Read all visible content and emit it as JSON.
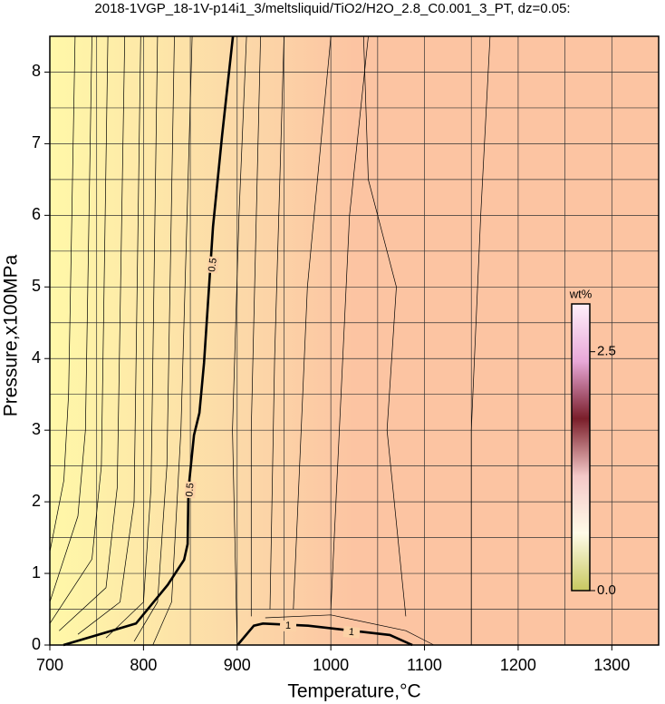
{
  "chart_data": {
    "type": "contour",
    "title": "2018-1VGP_18-1V-p14i1_3/meltsliquid/TiO2/H2O_2.8_C0.001_3_PT, dz=0.05:",
    "xlabel": "Temperature,°C",
    "ylabel": "Pressure,x100MPa",
    "xlim": [
      700,
      1350
    ],
    "ylim": [
      0,
      8.5
    ],
    "xticks": [
      700,
      800,
      900,
      1000,
      1100,
      1200,
      1300
    ],
    "yticks": [
      0,
      1,
      2,
      3,
      4,
      5,
      6,
      7,
      8
    ],
    "xminor": [
      750,
      850,
      950,
      1050,
      1150,
      1250,
      1350
    ],
    "yminor": [
      0.5,
      1.5,
      2.5,
      3.5,
      4.5,
      5.5,
      6.5,
      7.5,
      8.5
    ],
    "grid": true,
    "background_colors": [
      "#fff8a8",
      "#fcd8a8",
      "#fcc4a2"
    ],
    "line_color": "#000000",
    "contours": [
      {
        "level": 0.5,
        "x": [
          714.5,
          792,
          825.8,
          843.3,
          847.1,
          848,
          853.9,
          859.7,
          864.6,
          874.2,
          883.9,
          895.5
        ],
        "y": [
          0,
          0.3,
          0.84,
          1.19,
          1.41,
          2.17,
          2.93,
          3.24,
          3.94,
          5.84,
          7.11,
          8.5
        ]
      },
      {
        "level": 1,
        "x": [
          900.4,
          917.8,
          927.5,
          975.9,
          1063,
          1087
        ],
        "y": [
          0,
          0.27,
          0.3,
          0.27,
          0.14,
          0
        ]
      },
      {
        "x": [
          700,
          715,
          720,
          727
        ],
        "y": [
          1.3,
          2.3,
          3.5,
          8.5
        ]
      },
      {
        "x": [
          700,
          730,
          738,
          745
        ],
        "y": [
          0.6,
          1.8,
          3,
          8.5
        ]
      },
      {
        "x": [
          700,
          745,
          755,
          762
        ],
        "y": [
          0.3,
          1.2,
          2.5,
          8.5
        ]
      },
      {
        "x": [
          710,
          760,
          772,
          780
        ],
        "y": [
          0.2,
          0.8,
          2.2,
          8.5
        ]
      },
      {
        "x": [
          730,
          775,
          790,
          797
        ],
        "y": [
          0.15,
          0.6,
          2,
          8.5
        ]
      },
      {
        "x": [
          760,
          800,
          808,
          815
        ],
        "y": [
          0.1,
          0.6,
          2.2,
          8.5
        ]
      },
      {
        "x": [
          790,
          815,
          825,
          833
        ],
        "y": [
          0.05,
          0.6,
          2.5,
          8.5
        ]
      },
      {
        "x": [
          810,
          830,
          840,
          852
        ],
        "y": [
          0,
          0.6,
          3,
          8.5
        ]
      },
      {
        "x": [
          900,
          895,
          902,
          910
        ],
        "y": [
          0,
          3,
          6,
          8.5
        ]
      },
      {
        "x": [
          915,
          915,
          925
        ],
        "y": [
          0.4,
          3,
          8.5
        ]
      },
      {
        "x": [
          935,
          940,
          950
        ],
        "y": [
          0.5,
          4,
          8.5
        ]
      },
      {
        "x": [
          960,
          975,
          1000
        ],
        "y": [
          0.5,
          5,
          8.5
        ]
      },
      {
        "x": [
          1000,
          1020,
          1040
        ],
        "y": [
          0.5,
          6,
          8.5
        ]
      },
      {
        "x": [
          1080,
          1060,
          1070,
          1040,
          1035
        ],
        "y": [
          0.4,
          3,
          5,
          6.5,
          8.5
        ]
      },
      {
        "x": [
          930,
          1000,
          1080,
          1110
        ],
        "y": [
          0.38,
          0.42,
          0.2,
          0
        ]
      },
      {
        "x": [
          1150,
          1150,
          1160,
          1170
        ],
        "y": [
          0,
          3,
          6,
          8.5
        ]
      }
    ],
    "colorbar": {
      "label": "wt%",
      "clim": [
        0,
        3
      ],
      "ticks": [
        {
          "value": 0,
          "label": "0.0"
        },
        2.5
      ],
      "colors": [
        "#c8c860",
        "#fffbe8",
        "#f4c8c8",
        "#7a1e2a",
        "#e8a8d8",
        "#fff0fa"
      ]
    }
  }
}
